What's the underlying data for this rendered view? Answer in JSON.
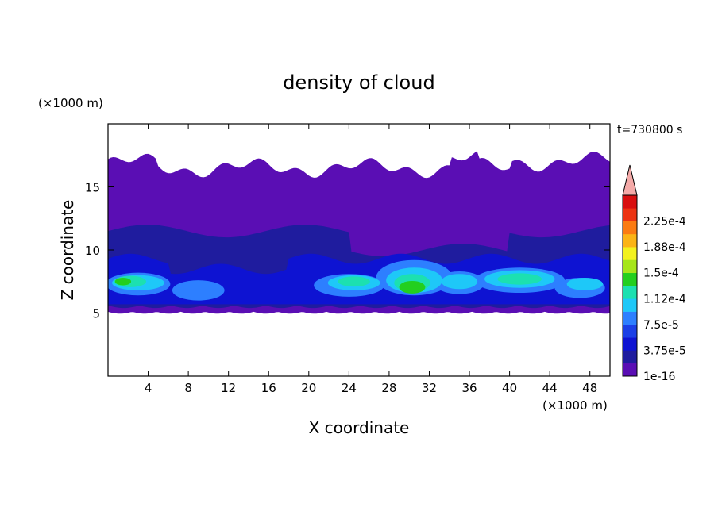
{
  "chart_data": {
    "type": "heatmap",
    "title": "density of cloud",
    "xlabel": "X coordinate",
    "ylabel": "Z coordinate",
    "x_unit": "(×1000 m)",
    "y_unit": "(×1000 m)",
    "time_label": "t=730800 s",
    "xlim": [
      0,
      50
    ],
    "ylim": [
      0,
      20
    ],
    "x_ticks": [
      4,
      8,
      12,
      16,
      20,
      24,
      28,
      32,
      36,
      40,
      44,
      48
    ],
    "y_ticks": [
      5,
      10,
      15
    ],
    "colorbar": {
      "levels": [
        1e-16,
        1.875e-05,
        3.75e-05,
        5.625e-05,
        7.5e-05,
        9.375e-05,
        0.0001125,
        0.00013125,
        0.00015,
        0.00016875,
        0.0001875,
        0.00020625,
        0.000225,
        0.00024375
      ],
      "tick_labels": [
        "1e-16",
        "3.75e-5",
        "7.5e-5",
        "1.12e-4",
        "1.5e-4",
        "1.88e-4",
        "2.25e-4"
      ],
      "colors": [
        "#5a0eb4",
        "#1f1c9e",
        "#0e13d2",
        "#1b3fe6",
        "#2d7fff",
        "#1ec8f8",
        "#1ce0b0",
        "#23cf1e",
        "#a6e61a",
        "#f3f21f",
        "#fbb416",
        "#fb7b12",
        "#ec3312",
        "#d90f0f"
      ],
      "extend_color": "#f4aaa8"
    },
    "field": {
      "cloud_base_km": 5.1,
      "cloud_top_km": 16.5,
      "inner_band_km": [
        5.6,
        11.5
      ],
      "high_density_core_km": [
        6.5,
        8.2
      ],
      "max_value_region_x_km": [
        28,
        34
      ]
    }
  }
}
